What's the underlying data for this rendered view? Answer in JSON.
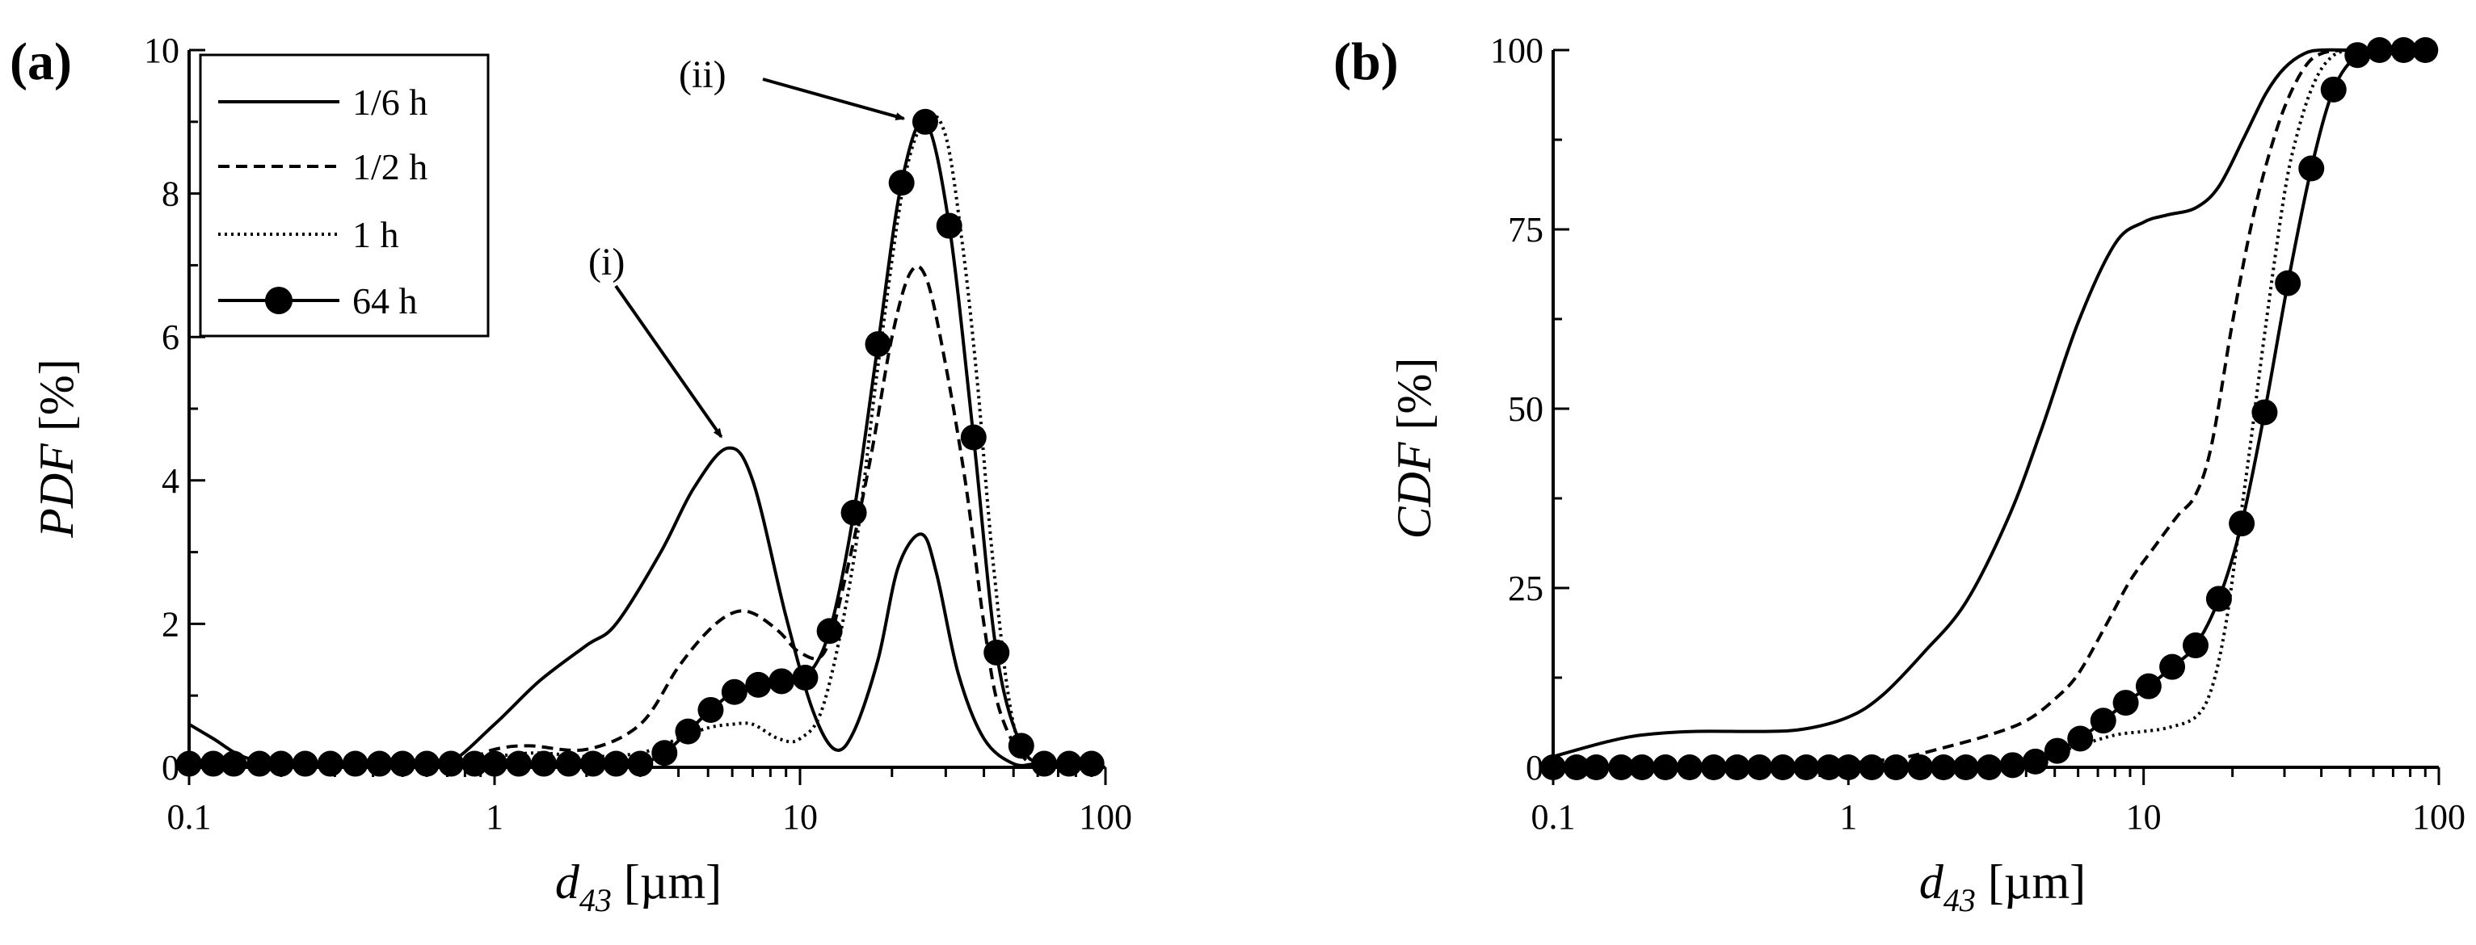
{
  "chart_data": [
    {
      "panel": "(a)",
      "type": "line",
      "xscale": "log",
      "xlim": [
        0.1,
        100
      ],
      "ylim": [
        0,
        10
      ],
      "xticks": [
        "0.1",
        "1",
        "10",
        "100"
      ],
      "yticks": [
        "0",
        "2",
        "4",
        "6",
        "8",
        "10"
      ],
      "xlabel_main": "d",
      "xlabel_sub": "43",
      "xlabel_unit": " [µm]",
      "ylabel_main": "PDF",
      "ylabel_unit": " [%]",
      "legend_position": "top-left",
      "annotations": [
        {
          "label": "(i)",
          "target": [
            5.8,
            4.45
          ]
        },
        {
          "label": "(ii)",
          "target": [
            25,
            9.0
          ]
        }
      ],
      "series": [
        {
          "name": "1/6 h",
          "style": "solid",
          "x": [
            0.1,
            0.12,
            0.15,
            0.2,
            0.3,
            0.5,
            0.7,
            1.0,
            1.4,
            2.0,
            2.5,
            3.5,
            4.5,
            5.8,
            7.0,
            9.0,
            11,
            13,
            15,
            18,
            21,
            25,
            28,
            33,
            40,
            50,
            60,
            80
          ],
          "y": [
            0.6,
            0.4,
            0.15,
            0.05,
            0.05,
            0.05,
            0.05,
            0.6,
            1.2,
            1.7,
            2.0,
            3.0,
            3.9,
            4.45,
            4.0,
            2.1,
            0.8,
            0.25,
            0.5,
            1.5,
            2.8,
            3.25,
            2.7,
            1.3,
            0.4,
            0.05,
            0.05,
            0.05
          ]
        },
        {
          "name": "1/2 h",
          "style": "dashed",
          "x": [
            0.1,
            0.3,
            0.7,
            1.0,
            1.3,
            2.0,
            3.0,
            4.0,
            5.0,
            6.0,
            7.0,
            8.5,
            10,
            12,
            14,
            17,
            20,
            23,
            26,
            30,
            35,
            40,
            45,
            55,
            70,
            85
          ],
          "y": [
            0.05,
            0.05,
            0.05,
            0.25,
            0.3,
            0.25,
            0.6,
            1.4,
            1.9,
            2.15,
            2.15,
            1.9,
            1.6,
            1.6,
            2.6,
            4.3,
            6.0,
            6.9,
            6.8,
            5.6,
            3.9,
            2.0,
            0.8,
            0.1,
            0.05,
            0.05
          ]
        },
        {
          "name": "1 h",
          "style": "dotted",
          "x": [
            0.1,
            0.3,
            0.7,
            1.0,
            1.4,
            2.0,
            3.0,
            4.0,
            5.0,
            6.0,
            7.0,
            8.5,
            10,
            12,
            15,
            18,
            22,
            26,
            30,
            34,
            38,
            43,
            50,
            60,
            80
          ],
          "y": [
            0.05,
            0.05,
            0.05,
            0.15,
            0.2,
            0.15,
            0.2,
            0.4,
            0.55,
            0.6,
            0.6,
            0.4,
            0.4,
            0.9,
            2.9,
            5.6,
            8.2,
            9.05,
            8.8,
            7.3,
            5.4,
            2.8,
            0.6,
            0.05,
            0.05
          ]
        },
        {
          "name": "64 h",
          "style": "solid-markers",
          "x": [
            0.1,
            0.12,
            0.14,
            0.17,
            0.2,
            0.24,
            0.29,
            0.35,
            0.42,
            0.5,
            0.6,
            0.72,
            0.86,
            1.0,
            1.2,
            1.45,
            1.75,
            2.1,
            2.5,
            3.0,
            3.6,
            4.3,
            5.1,
            6.1,
            7.3,
            8.7,
            10.4,
            12.5,
            15,
            18,
            21.5,
            25.7,
            30.8,
            37,
            44,
            53,
            63,
            76,
            90
          ],
          "y": [
            0.05,
            0.05,
            0.05,
            0.05,
            0.05,
            0.05,
            0.05,
            0.05,
            0.05,
            0.05,
            0.05,
            0.05,
            0.05,
            0.05,
            0.05,
            0.05,
            0.05,
            0.05,
            0.05,
            0.05,
            0.2,
            0.5,
            0.8,
            1.05,
            1.15,
            1.2,
            1.25,
            1.9,
            3.55,
            5.9,
            8.15,
            9.0,
            7.55,
            4.6,
            1.6,
            0.3,
            0.05,
            0.05,
            0.05
          ]
        }
      ],
      "legend": [
        {
          "label": "1/6 h",
          "style": "solid"
        },
        {
          "label": "1/2 h",
          "style": "dashed"
        },
        {
          "label": "1 h",
          "style": "dotted"
        },
        {
          "label": "64 h",
          "style": "solid-markers"
        }
      ]
    },
    {
      "panel": "(b)",
      "type": "line",
      "xscale": "log",
      "xlim": [
        0.1,
        100
      ],
      "ylim": [
        0,
        100
      ],
      "xticks": [
        "0.1",
        "1",
        "10",
        "100"
      ],
      "yticks": [
        "0",
        "25",
        "50",
        "75",
        "100"
      ],
      "xlabel_main": "d",
      "xlabel_sub": "43",
      "xlabel_unit": " [µm]",
      "ylabel_main": "CDF",
      "ylabel_unit": " [%]",
      "series": [
        {
          "name": "1/6 h",
          "style": "solid",
          "x": [
            0.1,
            0.15,
            0.2,
            0.3,
            0.5,
            0.7,
            1.0,
            1.3,
            1.8,
            2.5,
            3.5,
            4.5,
            6,
            8,
            10,
            12,
            15,
            18,
            22,
            26,
            30,
            35,
            40,
            50,
            60,
            80
          ],
          "y": [
            1.5,
            3.5,
            4.5,
            5,
            5,
            5.3,
            7,
            10,
            16,
            23,
            35,
            47,
            62,
            73,
            76,
            77,
            78,
            81,
            88,
            94,
            97.5,
            99.5,
            100,
            100,
            100,
            100
          ]
        },
        {
          "name": "1/2 h",
          "style": "dashed",
          "x": [
            0.1,
            0.3,
            0.5,
            0.7,
            1.0,
            1.5,
            2.0,
            3.0,
            4.0,
            5.0,
            6.0,
            7.5,
            9,
            11,
            13,
            15,
            17,
            20,
            23,
            26,
            30,
            35,
            40,
            50,
            80
          ],
          "y": [
            0,
            0,
            0,
            0.2,
            0.6,
            1.3,
            2.5,
            4.5,
            6.5,
            9.5,
            13,
            20,
            26,
            31,
            35,
            38,
            45,
            62,
            75,
            84,
            92,
            97.5,
            99.5,
            100,
            100
          ]
        },
        {
          "name": "1 h",
          "style": "dotted",
          "x": [
            0.1,
            0.5,
            1.0,
            2.0,
            3.0,
            4.0,
            5.0,
            6.0,
            8.0,
            10,
            12,
            15,
            17,
            19,
            21,
            23,
            26,
            30,
            33,
            37,
            42,
            50,
            80
          ],
          "y": [
            0,
            0,
            0,
            0.2,
            0.5,
            1.2,
            2,
            3,
            4.5,
            5,
            5.5,
            7,
            11,
            20,
            33,
            45,
            62,
            80,
            88,
            94.5,
            98.5,
            100,
            100
          ]
        },
        {
          "name": "64 h",
          "style": "solid-markers",
          "x": [
            0.1,
            0.12,
            0.14,
            0.17,
            0.2,
            0.24,
            0.29,
            0.35,
            0.42,
            0.5,
            0.6,
            0.72,
            0.86,
            1.0,
            1.2,
            1.45,
            1.75,
            2.1,
            2.5,
            3.0,
            3.6,
            4.3,
            5.1,
            6.1,
            7.3,
            8.7,
            10.4,
            12.5,
            15,
            18,
            21.5,
            25.7,
            30.8,
            37,
            44,
            53,
            63,
            76,
            90
          ],
          "y": [
            0,
            0,
            0,
            0,
            0,
            0,
            0,
            0,
            0,
            0,
            0,
            0,
            0,
            0,
            0,
            0,
            0,
            0,
            0,
            0,
            0.3,
            0.8,
            2.3,
            4,
            6.5,
            9,
            11.3,
            14,
            17,
            23.5,
            34,
            49.5,
            67.5,
            83.5,
            94.5,
            99.3,
            100,
            100,
            100
          ]
        }
      ]
    }
  ]
}
